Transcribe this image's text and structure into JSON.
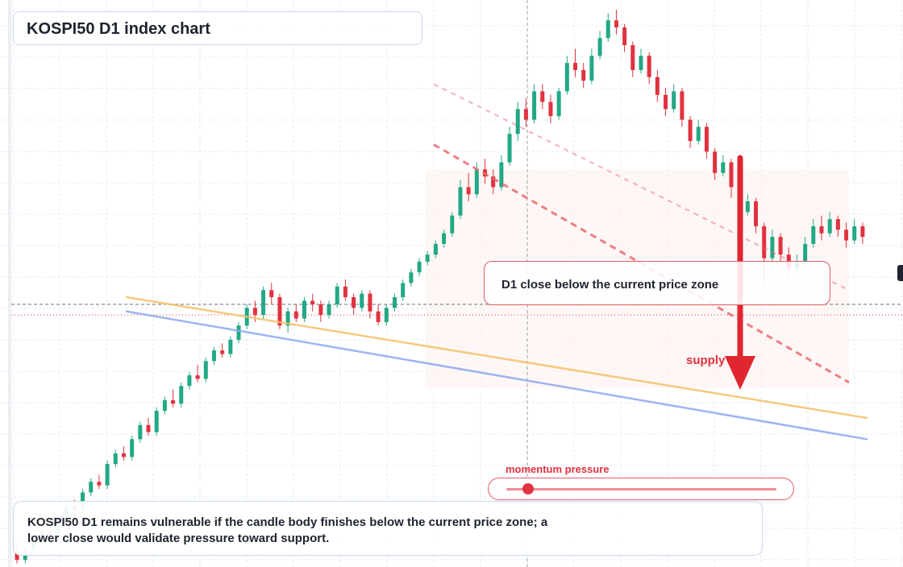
{
  "title": "KOSPI50 D1 index chart",
  "callout": {
    "text": "D1 close below the current price zone"
  },
  "supply_label": "supply",
  "momentum": {
    "label": "momentum pressure",
    "level": 0.08
  },
  "note": "KOSPI50 D1 remains vulnerable if the candle body finishes below the current price zone; a lower close would validate pressure toward support.",
  "colors": {
    "up": "#22a884",
    "down": "#e0323f",
    "bg": "#ffffff",
    "grid": "#e6e9ef",
    "ma_fast": "#f5c06a",
    "ma_slow": "#8ea8ee",
    "channel": "#e96a72"
  },
  "chart_data": {
    "type": "candlestick",
    "title": "KOSPI50 D1 index chart",
    "grid": true,
    "price_levels": {
      "current_price": 1.0,
      "reference": 0.97
    },
    "candles": [
      [
        0.3,
        0.28,
        0.33,
        0.27
      ],
      [
        0.28,
        0.31,
        0.32,
        0.27
      ],
      [
        0.31,
        0.34,
        0.35,
        0.3
      ],
      [
        0.34,
        0.36,
        0.37,
        0.33
      ],
      [
        0.36,
        0.35,
        0.38,
        0.34
      ],
      [
        0.35,
        0.4,
        0.41,
        0.34
      ],
      [
        0.4,
        0.43,
        0.44,
        0.39
      ],
      [
        0.43,
        0.42,
        0.45,
        0.41
      ],
      [
        0.42,
        0.47,
        0.48,
        0.41
      ],
      [
        0.47,
        0.5,
        0.51,
        0.46
      ],
      [
        0.5,
        0.49,
        0.52,
        0.48
      ],
      [
        0.49,
        0.55,
        0.56,
        0.48
      ],
      [
        0.55,
        0.58,
        0.59,
        0.54
      ],
      [
        0.58,
        0.57,
        0.6,
        0.56
      ],
      [
        0.57,
        0.62,
        0.63,
        0.56
      ],
      [
        0.62,
        0.66,
        0.67,
        0.61
      ],
      [
        0.66,
        0.64,
        0.68,
        0.63
      ],
      [
        0.64,
        0.7,
        0.71,
        0.63
      ],
      [
        0.7,
        0.73,
        0.74,
        0.69
      ],
      [
        0.73,
        0.72,
        0.76,
        0.71
      ],
      [
        0.72,
        0.77,
        0.78,
        0.71
      ],
      [
        0.77,
        0.8,
        0.81,
        0.76
      ],
      [
        0.8,
        0.79,
        0.83,
        0.78
      ],
      [
        0.79,
        0.84,
        0.85,
        0.78
      ],
      [
        0.84,
        0.87,
        0.88,
        0.83
      ],
      [
        0.87,
        0.86,
        0.89,
        0.85
      ],
      [
        0.86,
        0.9,
        0.91,
        0.85
      ],
      [
        0.9,
        0.94,
        0.95,
        0.89
      ],
      [
        0.94,
        0.99,
        1.0,
        0.93
      ],
      [
        0.99,
        0.97,
        1.01,
        0.95
      ],
      [
        0.97,
        1.04,
        1.05,
        0.96
      ],
      [
        1.04,
        1.02,
        1.06,
        1.0
      ],
      [
        1.02,
        0.94,
        1.03,
        0.93
      ],
      [
        0.94,
        0.98,
        0.99,
        0.92
      ],
      [
        0.98,
        0.96,
        1.0,
        0.95
      ],
      [
        0.96,
        1.01,
        1.02,
        0.95
      ],
      [
        1.01,
        1.0,
        1.03,
        0.98
      ],
      [
        1.0,
        0.97,
        1.01,
        0.95
      ],
      [
        0.97,
        1.0,
        1.01,
        0.96
      ],
      [
        1.0,
        1.05,
        1.06,
        0.99
      ],
      [
        1.05,
        1.02,
        1.07,
        1.01
      ],
      [
        1.02,
        0.99,
        1.03,
        0.97
      ],
      [
        0.99,
        1.03,
        1.04,
        0.98
      ],
      [
        1.03,
        0.98,
        1.04,
        0.96
      ],
      [
        0.98,
        0.95,
        1.0,
        0.94
      ],
      [
        0.95,
        0.99,
        1.0,
        0.94
      ],
      [
        0.99,
        1.02,
        1.03,
        0.98
      ],
      [
        1.02,
        1.06,
        1.07,
        1.01
      ],
      [
        1.06,
        1.09,
        1.1,
        1.05
      ],
      [
        1.09,
        1.12,
        1.13,
        1.08
      ],
      [
        1.12,
        1.14,
        1.15,
        1.11
      ],
      [
        1.14,
        1.17,
        1.18,
        1.13
      ],
      [
        1.17,
        1.2,
        1.21,
        1.16
      ],
      [
        1.2,
        1.25,
        1.26,
        1.19
      ],
      [
        1.25,
        1.33,
        1.35,
        1.24
      ],
      [
        1.33,
        1.31,
        1.37,
        1.29
      ],
      [
        1.31,
        1.38,
        1.4,
        1.3
      ],
      [
        1.38,
        1.36,
        1.41,
        1.34
      ],
      [
        1.36,
        1.33,
        1.38,
        1.31
      ],
      [
        1.33,
        1.4,
        1.42,
        1.32
      ],
      [
        1.4,
        1.48,
        1.5,
        1.39
      ],
      [
        1.48,
        1.55,
        1.57,
        1.46
      ],
      [
        1.55,
        1.52,
        1.58,
        1.5
      ],
      [
        1.52,
        1.6,
        1.62,
        1.51
      ],
      [
        1.6,
        1.57,
        1.62,
        1.55
      ],
      [
        1.57,
        1.53,
        1.59,
        1.51
      ],
      [
        1.53,
        1.6,
        1.61,
        1.52
      ],
      [
        1.6,
        1.68,
        1.7,
        1.59
      ],
      [
        1.68,
        1.66,
        1.72,
        1.64
      ],
      [
        1.66,
        1.63,
        1.68,
        1.61
      ],
      [
        1.63,
        1.7,
        1.72,
        1.62
      ],
      [
        1.7,
        1.75,
        1.77,
        1.69
      ],
      [
        1.75,
        1.8,
        1.82,
        1.74
      ],
      [
        1.8,
        1.78,
        1.83,
        1.76
      ],
      [
        1.78,
        1.73,
        1.79,
        1.71
      ],
      [
        1.73,
        1.66,
        1.74,
        1.64
      ],
      [
        1.66,
        1.7,
        1.72,
        1.65
      ],
      [
        1.7,
        1.64,
        1.71,
        1.62
      ],
      [
        1.64,
        1.59,
        1.66,
        1.57
      ],
      [
        1.59,
        1.55,
        1.61,
        1.53
      ],
      [
        1.55,
        1.6,
        1.62,
        1.54
      ],
      [
        1.6,
        1.52,
        1.61,
        1.5
      ],
      [
        1.52,
        1.46,
        1.53,
        1.44
      ],
      [
        1.46,
        1.5,
        1.52,
        1.45
      ],
      [
        1.5,
        1.43,
        1.51,
        1.41
      ],
      [
        1.43,
        1.37,
        1.44,
        1.35
      ],
      [
        1.37,
        1.4,
        1.42,
        1.36
      ],
      [
        1.4,
        1.33,
        1.41,
        1.3
      ],
      [
        1.33,
        1.26,
        1.34,
        1.24
      ],
      [
        1.26,
        1.29,
        1.31,
        1.25
      ],
      [
        1.29,
        1.22,
        1.3,
        1.2
      ],
      [
        1.22,
        1.13,
        1.23,
        1.05
      ],
      [
        1.13,
        1.19,
        1.21,
        1.1
      ],
      [
        1.19,
        1.14,
        1.2,
        1.12
      ],
      [
        1.14,
        1.1,
        1.16,
        1.08
      ],
      [
        1.1,
        1.12,
        1.14,
        1.09
      ],
      [
        1.12,
        1.17,
        1.19,
        1.11
      ],
      [
        1.17,
        1.22,
        1.24,
        1.16
      ],
      [
        1.22,
        1.2,
        1.25,
        1.18
      ],
      [
        1.2,
        1.24,
        1.26,
        1.19
      ],
      [
        1.24,
        1.21,
        1.25,
        1.19
      ],
      [
        1.21,
        1.18,
        1.23,
        1.16
      ],
      [
        1.18,
        1.22,
        1.24,
        1.17
      ],
      [
        1.22,
        1.19,
        1.23,
        1.17
      ]
    ],
    "moving_averages": [
      {
        "color": "ma_fast",
        "values": [
          1.02,
          0.68
        ]
      },
      {
        "color": "ma_slow",
        "values": [
          0.98,
          0.62
        ]
      }
    ],
    "channel_lines": [
      {
        "style": "dashed",
        "values": [
          1.45,
          0.78
        ]
      },
      {
        "style": "dashed-faint",
        "values": [
          1.62,
          1.04
        ]
      }
    ],
    "annotations": [
      {
        "type": "arrow-down",
        "label": "supply"
      }
    ]
  }
}
